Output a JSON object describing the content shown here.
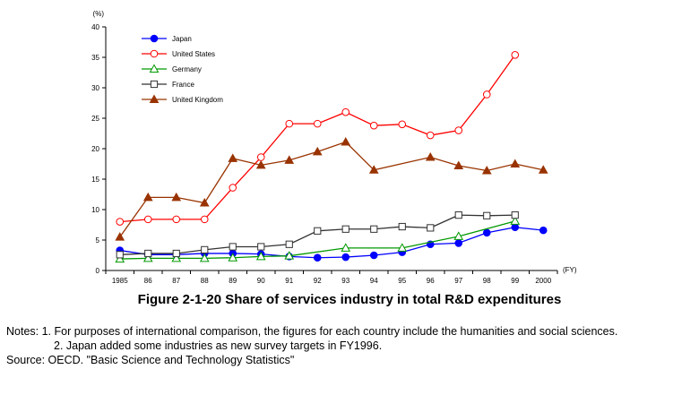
{
  "chart_data": {
    "type": "line",
    "y_unit_label": "(%)",
    "x_unit_label": "(FY)",
    "ylim": [
      0,
      40
    ],
    "y_ticks": [
      0,
      5,
      10,
      15,
      20,
      25,
      30,
      35,
      40
    ],
    "categories": [
      "1985",
      "86",
      "87",
      "88",
      "89",
      "90",
      "91",
      "92",
      "93",
      "94",
      "95",
      "96",
      "97",
      "98",
      "99",
      "2000"
    ],
    "grid": false,
    "legend_position": "top-left",
    "series": [
      {
        "name": "Japan",
        "color": "#0000ff",
        "marker": "filled-circle",
        "values": [
          3.3,
          2.6,
          2.6,
          2.8,
          2.8,
          2.7,
          2.3,
          2.1,
          2.2,
          2.5,
          3.0,
          4.3,
          4.5,
          6.2,
          7.1,
          6.6
        ]
      },
      {
        "name": "United States",
        "color": "#ff0000",
        "marker": "open-circle",
        "values": [
          8.0,
          8.4,
          8.4,
          8.4,
          13.6,
          18.6,
          24.1,
          24.1,
          26.0,
          23.8,
          24.0,
          22.2,
          23.0,
          28.9,
          35.4,
          null
        ]
      },
      {
        "name": "Germany",
        "color": "#009900",
        "marker": "open-triangle",
        "values": [
          1.9,
          2.0,
          2.0,
          2.0,
          2.1,
          2.3,
          2.4,
          null,
          3.7,
          null,
          3.7,
          null,
          5.6,
          null,
          8.1,
          null
        ]
      },
      {
        "name": "France",
        "color": "#333333",
        "marker": "open-square",
        "values": [
          2.6,
          2.8,
          2.8,
          3.4,
          3.9,
          3.9,
          4.3,
          6.5,
          6.8,
          6.8,
          7.2,
          7.0,
          9.1,
          9.0,
          9.1,
          null
        ]
      },
      {
        "name": "United Kingdom",
        "color": "#993300",
        "marker": "filled-triangle",
        "values": [
          5.5,
          12.0,
          12.0,
          11.1,
          18.4,
          17.3,
          18.1,
          19.5,
          21.1,
          16.5,
          null,
          18.6,
          17.2,
          16.4,
          17.5,
          16.5
        ]
      }
    ]
  },
  "figure_title": "Figure 2-1-20    Share of services industry in total R&D expenditures",
  "notes": {
    "label": "Notes: ",
    "items": [
      "1. For purposes of international comparison, the figures for each country include the humanities and social sciences.",
      "2. Japan added some industries as new survey targets in FY1996."
    ]
  },
  "source": "Source: OECD. \"Basic Science and Technology Statistics\""
}
